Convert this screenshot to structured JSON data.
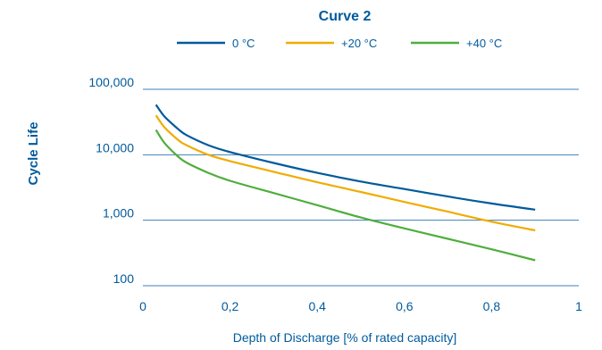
{
  "chart_data": {
    "type": "line",
    "title": "Curve 2",
    "xlabel": "Depth of Discharge [% of rated capacity]",
    "ylabel": "Cycle Life",
    "x_scale": "linear",
    "y_scale": "log",
    "xlim": [
      0,
      1
    ],
    "ylim": [
      100,
      100000
    ],
    "x_ticks": [
      0,
      0.2,
      0.4,
      0.6,
      0.8,
      1
    ],
    "x_tick_labels": [
      "0",
      "0,2",
      "0,4",
      "0,6",
      "0,8",
      "1"
    ],
    "y_ticks": [
      100,
      1000,
      10000,
      100000
    ],
    "y_tick_labels": [
      "100",
      "1,000",
      "10,000",
      "100,000"
    ],
    "gridlines": "horizontal",
    "legend_position": "top",
    "series": [
      {
        "name": "0 °C",
        "color": "#005a9c",
        "x": [
          0.03,
          0.05,
          0.08,
          0.1,
          0.15,
          0.2,
          0.3,
          0.4,
          0.5,
          0.6,
          0.7,
          0.8,
          0.9
        ],
        "y": [
          58000,
          38000,
          25000,
          20000,
          14000,
          11000,
          7500,
          5300,
          3900,
          3000,
          2300,
          1800,
          1450
        ]
      },
      {
        "name": "+20 °C",
        "color": "#f0ac00",
        "x": [
          0.03,
          0.05,
          0.08,
          0.1,
          0.15,
          0.2,
          0.3,
          0.4,
          0.5,
          0.6,
          0.7,
          0.8,
          0.9
        ],
        "y": [
          40000,
          26000,
          17000,
          14000,
          10000,
          8000,
          5500,
          3800,
          2700,
          1900,
          1350,
          950,
          700
        ]
      },
      {
        "name": "+40 °C",
        "color": "#4fae3c",
        "x": [
          0.03,
          0.05,
          0.08,
          0.1,
          0.15,
          0.2,
          0.3,
          0.4,
          0.5,
          0.6,
          0.7,
          0.8,
          0.9
        ],
        "y": [
          24000,
          15000,
          9500,
          7600,
          5300,
          4000,
          2600,
          1700,
          1100,
          750,
          520,
          360,
          245
        ]
      }
    ]
  }
}
